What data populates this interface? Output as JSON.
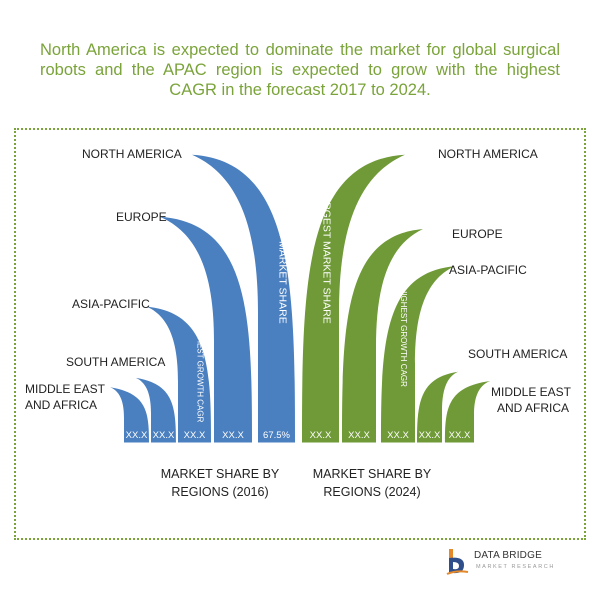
{
  "headline": "North America is expected to dominate the market for global surgical robots and the APAC region is expected to grow with the highest CAGR in the forecast 2017 to 2024.",
  "colors": {
    "left": "#4a7fc0",
    "right": "#6f9a37",
    "accent_text": "#7aa33a"
  },
  "chart_data": [
    {
      "type": "bar",
      "title": "MARKET SHARE BY REGIONS (2016)",
      "categories": [
        "MIDDLE EAST AND AFRICA",
        "SOUTH AMERICA",
        "ASIA-PACIFIC",
        "EUROPE",
        "NORTH AMERICA"
      ],
      "value_labels": [
        "XX.X",
        "XX.X",
        "XX.X",
        "XX.X",
        "67.5%"
      ],
      "annotations": [
        "",
        "",
        "HIGHEST GROWTH CAGR",
        "",
        "LARGEST MARKET SHARE"
      ],
      "relative_height": [
        0.18,
        0.21,
        0.44,
        0.73,
        0.93
      ]
    },
    {
      "type": "bar",
      "title": "MARKET SHARE BY REGIONS (2024)",
      "categories": [
        "NORTH AMERICA",
        "EUROPE",
        "ASIA-PACIFIC",
        "SOUTH AMERICA",
        "MIDDLE EAST AND AFRICA"
      ],
      "value_labels": [
        "XX.X",
        "XX.X",
        "XX.X",
        "XX.X",
        "XX.X"
      ],
      "annotations": [
        "LARGEST MARKET SHARE",
        "",
        "HIGHEST GROWTH CAGR",
        "",
        ""
      ],
      "relative_height": [
        0.93,
        0.69,
        0.57,
        0.23,
        0.2
      ]
    }
  ],
  "labels": {
    "left": {
      "north_america": "NORTH AMERICA",
      "europe": "EUROPE",
      "asia_pacific": "ASIA-PACIFIC",
      "south_america": "SOUTH AMERICA",
      "mea_line1": "MIDDLE EAST",
      "mea_line2": "AND AFRICA"
    },
    "right": {
      "north_america": "NORTH AMERICA",
      "europe": "EUROPE",
      "asia_pacific": "ASIA-PACIFIC",
      "south_america": "SOUTH AMERICA",
      "mea_line1": "MIDDLE EAST",
      "mea_line2": "AND AFRICA"
    }
  },
  "captions": {
    "left_line1": "MARKET SHARE BY",
    "left_line2": "REGIONS (2016)",
    "right_line1": "MARKET SHARE BY",
    "right_line2": "REGIONS (2024)"
  },
  "logo": {
    "title": "DATA BRIDGE",
    "subtitle": "MARKET RESEARCH"
  }
}
